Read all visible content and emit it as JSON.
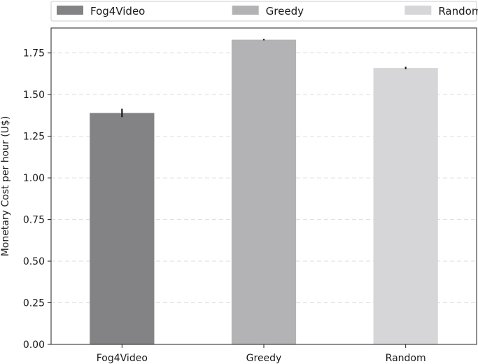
{
  "chart_data": {
    "type": "bar",
    "title": "",
    "xlabel": "",
    "ylabel": "Monetary Cost per hour (U$)",
    "categories": [
      "Fog4Video",
      "Greedy",
      "Random"
    ],
    "values": [
      1.39,
      1.83,
      1.66
    ],
    "errors": [
      0.025,
      0.004,
      0.007
    ],
    "ylim": [
      0,
      1.9
    ],
    "yticks": [
      "0.00",
      "0.25",
      "0.50",
      "0.75",
      "1.00",
      "1.25",
      "1.50",
      "1.75"
    ],
    "grid": true,
    "legend": {
      "placement": "top",
      "entries": [
        "Fog4Video",
        "Greedy",
        "Random"
      ]
    },
    "colors": [
      "#838386",
      "#b3b3b5",
      "#d6d6d8"
    ],
    "error_color": "#1a1a1a"
  }
}
